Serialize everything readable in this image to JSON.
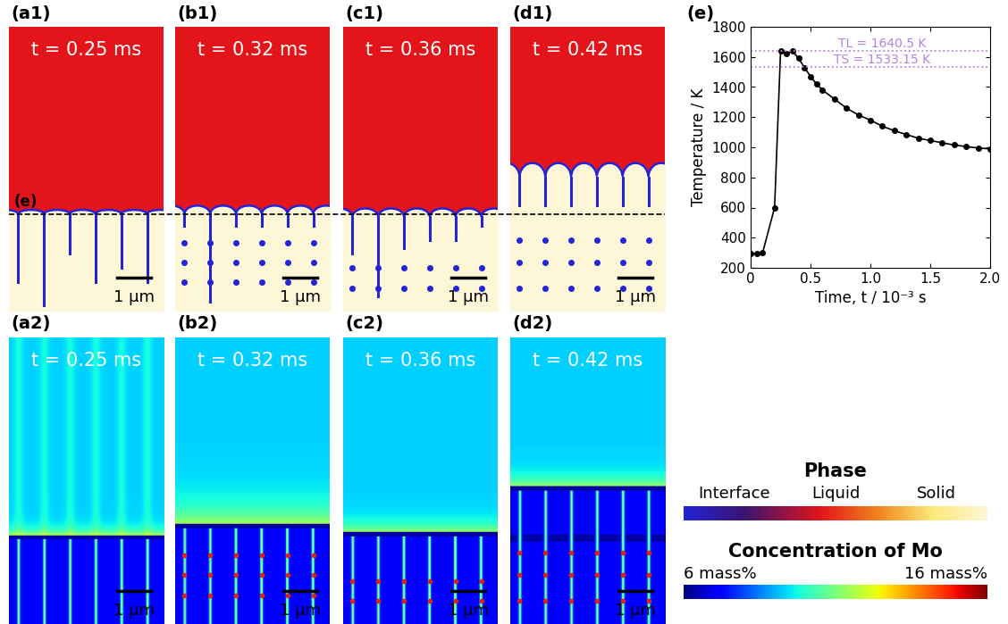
{
  "panels": {
    "phase_field": [
      {
        "label": "(a1)",
        "time": "t = 0.25 ms",
        "scale_bar": "1 µm"
      },
      {
        "label": "(b1)",
        "time": "t = 0.32 ms",
        "scale_bar": "1 µm"
      },
      {
        "label": "(c1)",
        "time": "t = 0.36 ms",
        "scale_bar": "1 µm"
      },
      {
        "label": "(d1)",
        "time": "t = 0.42 ms",
        "scale_bar": "1 µm"
      }
    ],
    "concentration": [
      {
        "label": "(a2)",
        "time": "t = 0.25 ms",
        "scale_bar": "1 µm"
      },
      {
        "label": "(b2)",
        "time": "t = 0.32 ms",
        "scale_bar": "1 µm"
      },
      {
        "label": "(c2)",
        "time": "t = 0.36 ms",
        "scale_bar": "1 µm"
      },
      {
        "label": "(d2)",
        "time": "t = 0.42 ms",
        "scale_bar": "1 µm"
      }
    ],
    "cut_line_label": "(e)"
  },
  "chart_data": {
    "type": "line",
    "title": "(e)",
    "x_label": "Time, t / 10⁻³ s",
    "y_label": "Temperature / K",
    "x": [
      0.0,
      0.05,
      0.1,
      0.2,
      0.25,
      0.3,
      0.35,
      0.4,
      0.45,
      0.5,
      0.55,
      0.6,
      0.7,
      0.8,
      0.9,
      1.0,
      1.1,
      1.2,
      1.3,
      1.4,
      1.5,
      1.6,
      1.7,
      1.8,
      1.9,
      2.0
    ],
    "values": [
      295,
      295,
      300,
      600,
      1640,
      1620,
      1640,
      1590,
      1530,
      1470,
      1420,
      1380,
      1320,
      1260,
      1215,
      1180,
      1140,
      1110,
      1085,
      1060,
      1045,
      1030,
      1015,
      1005,
      995,
      990
    ],
    "color": "#000000",
    "marker": "o",
    "xlim": [
      0,
      2.0
    ],
    "xticks": [
      0,
      0.5,
      1.0,
      1.5,
      2.0
    ],
    "ylim": [
      200,
      1800
    ],
    "yticks": [
      200,
      400,
      600,
      800,
      1000,
      1200,
      1400,
      1600,
      1800
    ],
    "reference_lines": [
      {
        "value": 1640.5,
        "label": "TL = 1640.5 K",
        "color": "#b583e0"
      },
      {
        "value": 1533.15,
        "label": "TS = 1533.15 K",
        "color": "#b583e0"
      }
    ]
  },
  "legends": {
    "phase": {
      "title": "Phase",
      "labels": [
        "Interface",
        "Liquid",
        "Solid"
      ]
    },
    "concentration": {
      "title": "Concentration of Mo",
      "range": [
        6,
        16
      ],
      "ticks": [
        {
          "value": 6,
          "label": "6 mass%"
        },
        {
          "value": 16,
          "label": "16 mass%"
        }
      ]
    }
  }
}
